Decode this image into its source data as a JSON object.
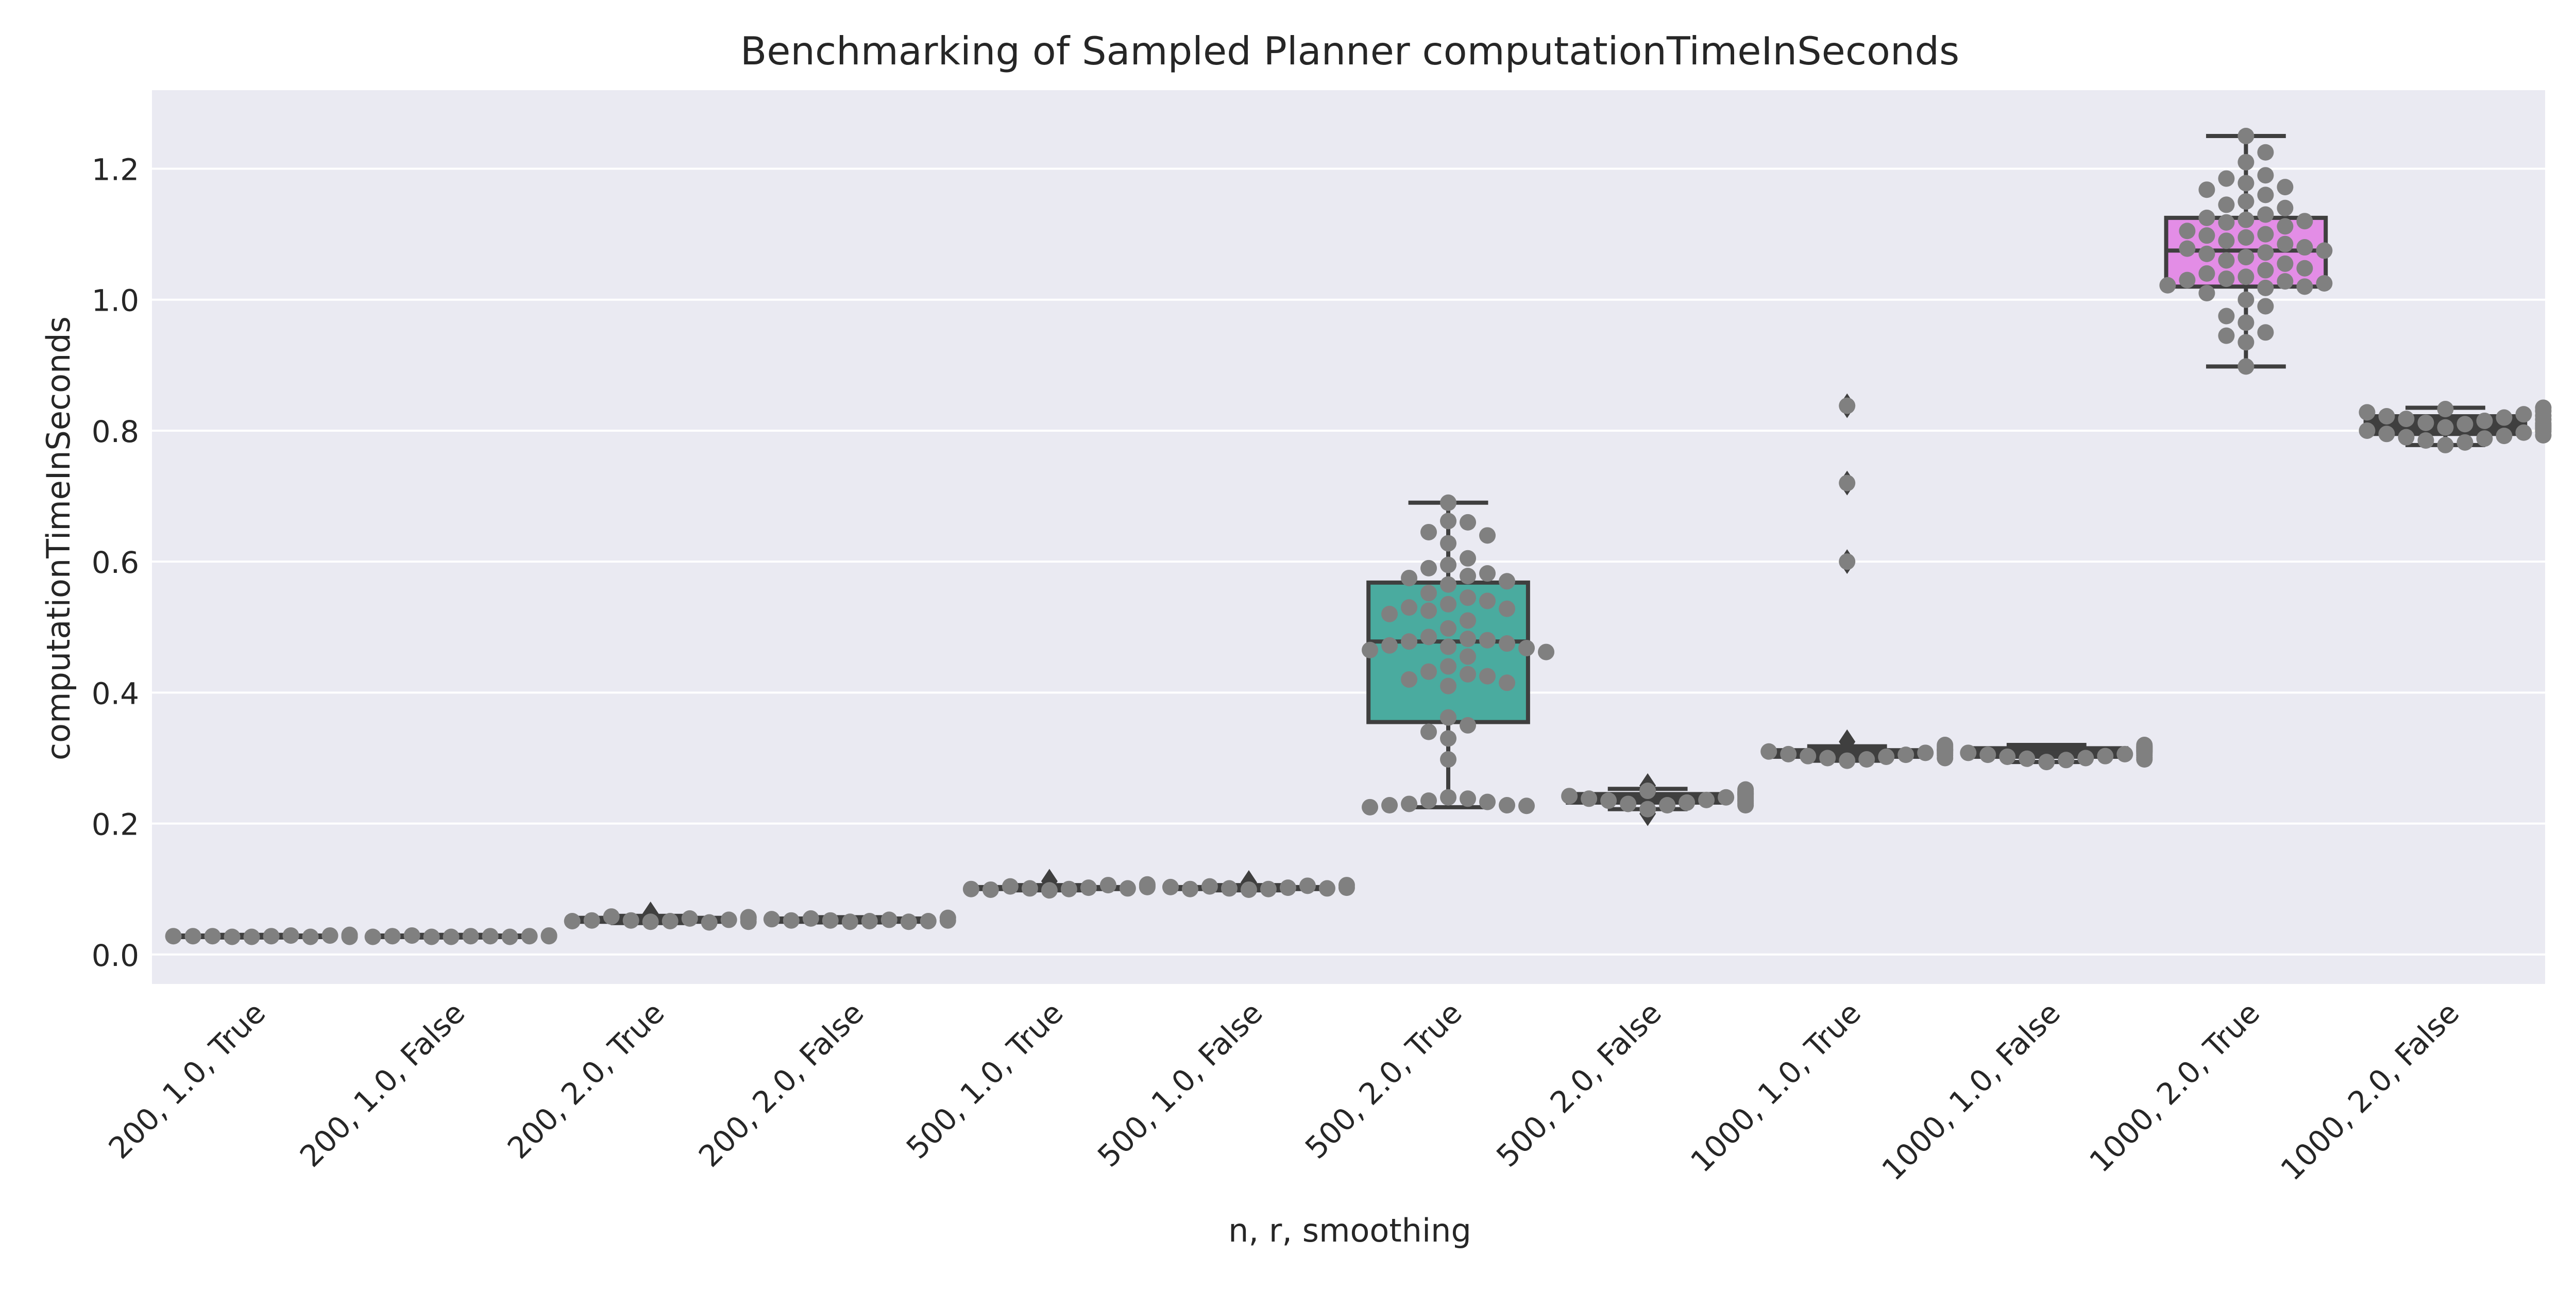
{
  "chart_data": {
    "type": "box",
    "title": "Benchmarking of Sampled Planner computationTimeInSeconds",
    "xlabel": "n, r, smoothing",
    "ylabel": "computationTimeInSeconds",
    "ylim": [
      -0.045,
      1.32
    ],
    "yticks": [
      0.0,
      0.2,
      0.4,
      0.6,
      0.8,
      1.0,
      1.2
    ],
    "ytick_labels": [
      "0.0",
      "0.2",
      "0.4",
      "0.6",
      "0.8",
      "1.0",
      "1.2"
    ],
    "grid": true,
    "background": "#eaeaf2",
    "point_color": "#808080",
    "line_color": "#3f3f3f",
    "categories": [
      "200, 1.0, True",
      "200, 1.0, False",
      "200, 2.0, True",
      "200, 2.0, False",
      "500, 1.0, True",
      "500, 1.0, False",
      "500, 2.0, True",
      "500, 2.0, False",
      "1000, 1.0, True",
      "1000, 1.0, False",
      "1000, 2.0, True",
      "1000, 2.0, False"
    ],
    "boxes": [
      {
        "q1": 0.027,
        "median": 0.028,
        "q3": 0.029,
        "whislo": 0.026,
        "whishi": 0.03,
        "fliers": [],
        "color": "#3f3f3f"
      },
      {
        "q1": 0.027,
        "median": 0.028,
        "q3": 0.029,
        "whislo": 0.026,
        "whishi": 0.03,
        "fliers": [],
        "color": "#3f3f3f"
      },
      {
        "q1": 0.05,
        "median": 0.052,
        "q3": 0.056,
        "whislo": 0.048,
        "whishi": 0.059,
        "fliers": [
          0.062
        ],
        "color": "#3f3f3f"
      },
      {
        "q1": 0.05,
        "median": 0.052,
        "q3": 0.055,
        "whislo": 0.049,
        "whishi": 0.057,
        "fliers": [],
        "color": "#3f3f3f"
      },
      {
        "q1": 0.1,
        "median": 0.101,
        "q3": 0.103,
        "whislo": 0.098,
        "whishi": 0.106,
        "fliers": [
          0.112
        ],
        "color": "#3f3f3f"
      },
      {
        "q1": 0.1,
        "median": 0.101,
        "q3": 0.103,
        "whislo": 0.098,
        "whishi": 0.106,
        "fliers": [
          0.11
        ],
        "color": "#3f3f3f"
      },
      {
        "q1": 0.355,
        "median": 0.478,
        "q3": 0.568,
        "whislo": 0.225,
        "whishi": 0.69,
        "fliers": [],
        "color": "#4aab9f"
      },
      {
        "q1": 0.232,
        "median": 0.238,
        "q3": 0.245,
        "whislo": 0.222,
        "whishi": 0.253,
        "fliers": [
          0.215,
          0.258
        ],
        "color": "#3f3f3f"
      },
      {
        "q1": 0.302,
        "median": 0.308,
        "q3": 0.312,
        "whislo": 0.296,
        "whishi": 0.318,
        "fliers": [
          0.325,
          0.6,
          0.72,
          0.838
        ],
        "color": "#3f3f3f"
      },
      {
        "q1": 0.302,
        "median": 0.308,
        "q3": 0.315,
        "whislo": 0.294,
        "whishi": 0.32,
        "fliers": [],
        "color": "#3f3f3f"
      },
      {
        "q1": 1.02,
        "median": 1.075,
        "q3": 1.125,
        "whislo": 0.898,
        "whishi": 1.25,
        "fliers": [],
        "color": "#e38de6"
      },
      {
        "q1": 0.795,
        "median": 0.808,
        "q3": 0.822,
        "whislo": 0.778,
        "whishi": 0.835,
        "fliers": [],
        "color": "#3f3f3f"
      }
    ],
    "points": [
      [
        0.027,
        0.028,
        0.027,
        0.029,
        0.028,
        0.027,
        0.028,
        0.029,
        0.028,
        0.027,
        0.029,
        0.028,
        0.03
      ],
      [
        0.027,
        0.028,
        0.027,
        0.028,
        0.029,
        0.027,
        0.028,
        0.028,
        0.027,
        0.029,
        0.028
      ],
      [
        0.05,
        0.051,
        0.052,
        0.055,
        0.058,
        0.049,
        0.052,
        0.053,
        0.051,
        0.056,
        0.05,
        0.054,
        0.057
      ],
      [
        0.05,
        0.051,
        0.052,
        0.053,
        0.055,
        0.05,
        0.052,
        0.051,
        0.054,
        0.056,
        0.052
      ],
      [
        0.098,
        0.1,
        0.101,
        0.102,
        0.104,
        0.106,
        0.099,
        0.101,
        0.1,
        0.103,
        0.105,
        0.107
      ],
      [
        0.099,
        0.1,
        0.101,
        0.102,
        0.104,
        0.105,
        0.1,
        0.101,
        0.103,
        0.102,
        0.106
      ],
      [
        0.69,
        0.662,
        0.66,
        0.645,
        0.64,
        0.628,
        0.605,
        0.595,
        0.59,
        0.582,
        0.578,
        0.575,
        0.57,
        0.565,
        0.552,
        0.545,
        0.54,
        0.535,
        0.53,
        0.528,
        0.525,
        0.52,
        0.51,
        0.498,
        0.485,
        0.482,
        0.48,
        0.478,
        0.475,
        0.472,
        0.47,
        0.468,
        0.465,
        0.462,
        0.455,
        0.44,
        0.432,
        0.428,
        0.425,
        0.42,
        0.415,
        0.41,
        0.362,
        0.35,
        0.34,
        0.33,
        0.298,
        0.24,
        0.238,
        0.235,
        0.233,
        0.23,
        0.228,
        0.228,
        0.227,
        0.225
      ],
      [
        0.222,
        0.228,
        0.23,
        0.232,
        0.235,
        0.236,
        0.238,
        0.24,
        0.242,
        0.244,
        0.245,
        0.247,
        0.25,
        0.252,
        0.228,
        0.231,
        0.234,
        0.236,
        0.239,
        0.242,
        0.246,
        0.249
      ],
      [
        0.296,
        0.298,
        0.3,
        0.302,
        0.303,
        0.305,
        0.306,
        0.308,
        0.31,
        0.311,
        0.312,
        0.314,
        0.316,
        0.318,
        0.3,
        0.304,
        0.307,
        0.309,
        0.313,
        0.32,
        0.838,
        0.72,
        0.6
      ],
      [
        0.294,
        0.297,
        0.299,
        0.3,
        0.302,
        0.303,
        0.305,
        0.306,
        0.308,
        0.309,
        0.31,
        0.312,
        0.313,
        0.315,
        0.316,
        0.318,
        0.32,
        0.298,
        0.301,
        0.304,
        0.307,
        0.311,
        0.314,
        0.317
      ],
      [
        1.25,
        1.225,
        1.21,
        1.19,
        1.185,
        1.178,
        1.172,
        1.168,
        1.16,
        1.15,
        1.145,
        1.14,
        1.13,
        1.125,
        1.122,
        1.12,
        1.118,
        1.112,
        1.105,
        1.1,
        1.098,
        1.095,
        1.09,
        1.085,
        1.08,
        1.078,
        1.075,
        1.072,
        1.07,
        1.065,
        1.06,
        1.055,
        1.048,
        1.045,
        1.04,
        1.035,
        1.032,
        1.03,
        1.028,
        1.025,
        1.022,
        1.02,
        1.018,
        1.01,
        1.0,
        0.99,
        0.975,
        0.965,
        0.95,
        0.945,
        0.935,
        0.898
      ],
      [
        0.778,
        0.782,
        0.785,
        0.788,
        0.79,
        0.792,
        0.795,
        0.797,
        0.8,
        0.802,
        0.805,
        0.807,
        0.808,
        0.81,
        0.812,
        0.815,
        0.818,
        0.82,
        0.822,
        0.825,
        0.828,
        0.83,
        0.833,
        0.835,
        0.793,
        0.799,
        0.804,
        0.811,
        0.817,
        0.823
      ]
    ]
  }
}
